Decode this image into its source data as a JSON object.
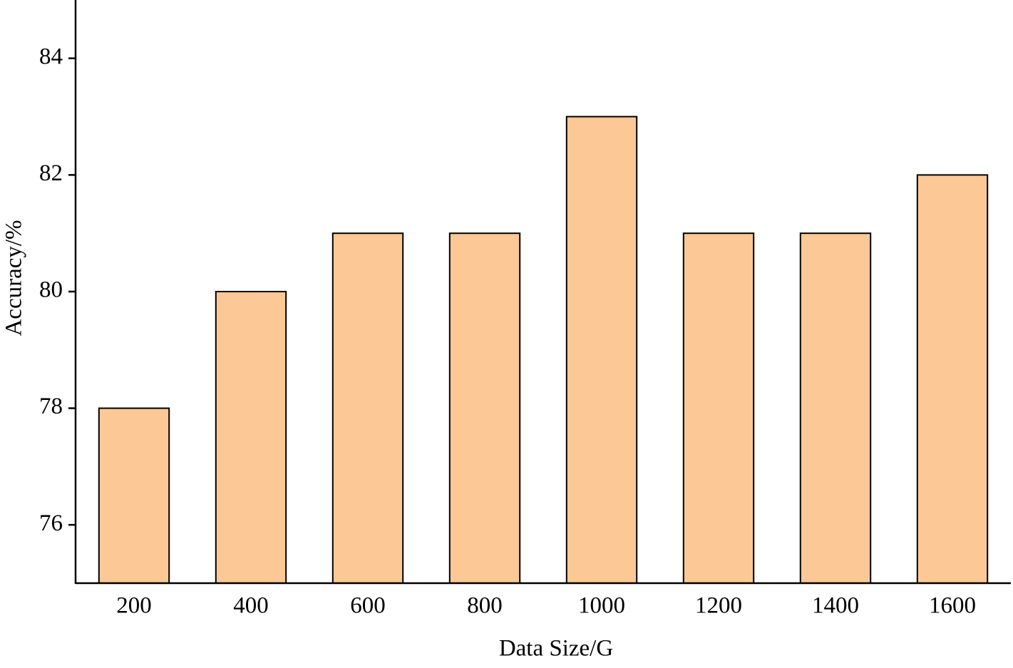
{
  "chart_data": {
    "type": "bar",
    "x_label": "Data Size/G",
    "y_label": "Accuracy/%",
    "categories": [
      "200",
      "400",
      "600",
      "800",
      "1000",
      "1200",
      "1400",
      "1600"
    ],
    "values": [
      78,
      80,
      81,
      81,
      83,
      81,
      81,
      82
    ],
    "color": "#fbc896",
    "ylim": [
      75,
      85
    ],
    "yticks": [
      76,
      78,
      80,
      82,
      84
    ],
    "grid": false
  }
}
